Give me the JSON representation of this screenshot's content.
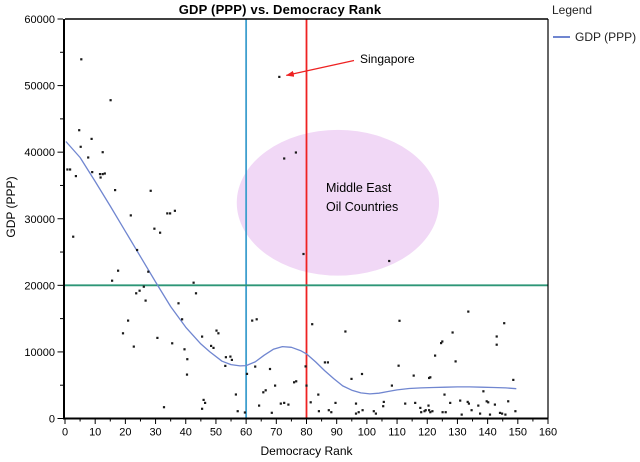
{
  "chart_data": {
    "type": "scatter",
    "title": "GDP (PPP) vs. Democracy Rank",
    "xlabel": "Democracy Rank",
    "ylabel": "GDP (PPP)",
    "xlim": [
      0,
      160
    ],
    "ylim": [
      0,
      60000
    ],
    "x_ticks": [
      0,
      10,
      20,
      30,
      40,
      50,
      60,
      70,
      80,
      90,
      100,
      110,
      120,
      130,
      140,
      150,
      160
    ],
    "y_ticks": [
      0,
      10000,
      20000,
      30000,
      40000,
      50000,
      60000
    ],
    "x_minor_step": 5,
    "y_minor_step": 5000,
    "grid": false,
    "point_color": "#1a1a1a",
    "legend": {
      "title": "Legend",
      "position": "top-right",
      "entries": [
        {
          "label": "GDP (PPP)",
          "color": "#7086d0"
        }
      ]
    },
    "series": [
      {
        "name": "GDP (PPP)",
        "kind": "smooth-trend-line",
        "color": "#7086d0",
        "points": [
          [
            0.3,
            41600
          ],
          [
            5,
            39200
          ],
          [
            10,
            35600
          ],
          [
            15,
            31900
          ],
          [
            20,
            28100
          ],
          [
            25,
            24300
          ],
          [
            30,
            20500
          ],
          [
            35,
            16800
          ],
          [
            40,
            13700
          ],
          [
            45,
            11200
          ],
          [
            48,
            10000
          ],
          [
            52,
            8600
          ],
          [
            55,
            8100
          ],
          [
            58,
            7900
          ],
          [
            60,
            7950
          ],
          [
            63,
            8500
          ],
          [
            66,
            9500
          ],
          [
            69,
            10400
          ],
          [
            72,
            10800
          ],
          [
            75,
            10700
          ],
          [
            78,
            10200
          ],
          [
            80,
            9700
          ],
          [
            83,
            8500
          ],
          [
            86,
            7200
          ],
          [
            89,
            6000
          ],
          [
            92,
            4900
          ],
          [
            95,
            4250
          ],
          [
            98,
            3850
          ],
          [
            101,
            3700
          ],
          [
            104,
            3800
          ],
          [
            107,
            4050
          ],
          [
            110,
            4300
          ],
          [
            114,
            4500
          ],
          [
            118,
            4600
          ],
          [
            122,
            4650
          ],
          [
            126,
            4700
          ],
          [
            130,
            4750
          ],
          [
            134,
            4750
          ],
          [
            138,
            4700
          ],
          [
            142,
            4650
          ],
          [
            146,
            4600
          ],
          [
            149.5,
            4480
          ]
        ]
      }
    ],
    "points": [
      [
        5.4,
        53950
      ],
      [
        15.1,
        47800
      ],
      [
        4.7,
        43300
      ],
      [
        8.8,
        42000
      ],
      [
        5.2,
        40800
      ],
      [
        12.5,
        40000
      ],
      [
        7.7,
        39200
      ],
      [
        0.8,
        37400
      ],
      [
        1.7,
        37400
      ],
      [
        3.6,
        36400
      ],
      [
        9.0,
        37000
      ],
      [
        11.6,
        36700
      ],
      [
        12.5,
        36700
      ],
      [
        13.2,
        36800
      ],
      [
        11.8,
        36200
      ],
      [
        16.6,
        34300
      ],
      [
        28.4,
        34200
      ],
      [
        21.8,
        30500
      ],
      [
        33.9,
        30800
      ],
      [
        34.8,
        30800
      ],
      [
        36.4,
        31200
      ],
      [
        29.6,
        28500
      ],
      [
        31.5,
        27900
      ],
      [
        2.7,
        27300
      ],
      [
        23.9,
        25300
      ],
      [
        17.6,
        22200
      ],
      [
        27.6,
        22050
      ],
      [
        15.6,
        20700
      ],
      [
        26.1,
        19800
      ],
      [
        24.7,
        19200
      ],
      [
        23.6,
        18800
      ],
      [
        43.4,
        18800
      ],
      [
        42.6,
        20400
      ],
      [
        37.6,
        17300
      ],
      [
        26.7,
        17700
      ],
      [
        20.9,
        14700
      ],
      [
        38.8,
        14900
      ],
      [
        19.2,
        12800
      ],
      [
        30.6,
        12100
      ],
      [
        35.5,
        11300
      ],
      [
        22.8,
        10800
      ],
      [
        39.6,
        10400
      ],
      [
        45.4,
        12300
      ],
      [
        50.2,
        13200
      ],
      [
        50.8,
        12800
      ],
      [
        48.4,
        10900
      ],
      [
        49.2,
        10600
      ],
      [
        40.5,
        8900
      ],
      [
        53.3,
        9200
      ],
      [
        54.8,
        9300
      ],
      [
        55.3,
        8800
      ],
      [
        53.1,
        7900
      ],
      [
        40.4,
        6600
      ],
      [
        56.6,
        3600
      ],
      [
        32.8,
        1700
      ],
      [
        45.9,
        2800
      ],
      [
        46.4,
        2350
      ],
      [
        45.4,
        1450
      ],
      [
        57.2,
        1100
      ],
      [
        59.6,
        900
      ],
      [
        62.0,
        14700
      ],
      [
        63.5,
        14900
      ],
      [
        63.0,
        7800
      ],
      [
        60.3,
        6700
      ],
      [
        67.9,
        7440
      ],
      [
        65.7,
        3940
      ],
      [
        66.5,
        4240
      ],
      [
        64.3,
        1940
      ],
      [
        68.5,
        850
      ],
      [
        69.6,
        4940
      ],
      [
        71.5,
        2240
      ],
      [
        72.6,
        2340
      ],
      [
        74.0,
        2090
      ],
      [
        75.9,
        5440
      ],
      [
        76.6,
        5590
      ],
      [
        79.7,
        7830
      ],
      [
        80.0,
        4940
      ],
      [
        81.4,
        2440
      ],
      [
        81.9,
        14170
      ],
      [
        83.9,
        3590
      ],
      [
        84.1,
        1090
      ],
      [
        86.1,
        8430
      ],
      [
        87.1,
        8430
      ],
      [
        87.4,
        1240
      ],
      [
        88.2,
        940
      ],
      [
        89.6,
        2340
      ],
      [
        71.0,
        51300
      ],
      [
        72.6,
        39050
      ],
      [
        76.5,
        39950
      ],
      [
        79.0,
        24700
      ],
      [
        107.4,
        23650
      ],
      [
        92.9,
        13070
      ],
      [
        94.9,
        5940
      ],
      [
        96.4,
        2240
      ],
      [
        96.4,
        740
      ],
      [
        97.3,
        940
      ],
      [
        98.4,
        6690
      ],
      [
        98.6,
        1240
      ],
      [
        102.3,
        1090
      ],
      [
        103.0,
        740
      ],
      [
        105.6,
        2490
      ],
      [
        105.4,
        1840
      ],
      [
        108.3,
        4940
      ],
      [
        110.5,
        7930
      ],
      [
        110.8,
        14670
      ],
      [
        112.7,
        2240
      ],
      [
        115.5,
        6440
      ],
      [
        116.0,
        2340
      ],
      [
        117.7,
        1590
      ],
      [
        118.0,
        940
      ],
      [
        119.1,
        1090
      ],
      [
        119.5,
        1240
      ],
      [
        120.4,
        1940
      ],
      [
        120.6,
        1240
      ],
      [
        120.6,
        6090
      ],
      [
        121.0,
        940
      ],
      [
        121.7,
        1090
      ],
      [
        121.0,
        6190
      ],
      [
        122.6,
        9450
      ],
      [
        124.6,
        11330
      ],
      [
        125.0,
        11570
      ],
      [
        125.1,
        940
      ],
      [
        125.7,
        3590
      ],
      [
        126.1,
        940
      ],
      [
        127.6,
        2340
      ],
      [
        128.4,
        12920
      ],
      [
        129.4,
        8580
      ],
      [
        130.9,
        2690
      ],
      [
        131.4,
        590
      ],
      [
        133.4,
        2490
      ],
      [
        133.8,
        2240
      ],
      [
        133.6,
        16060
      ],
      [
        134.7,
        1240
      ],
      [
        136.9,
        1940
      ],
      [
        137.5,
        740
      ],
      [
        138.6,
        4090
      ],
      [
        139.7,
        2590
      ],
      [
        140.2,
        2440
      ],
      [
        140.8,
        590
      ],
      [
        142.4,
        2090
      ],
      [
        143.0,
        12320
      ],
      [
        143.0,
        11080
      ],
      [
        144.1,
        840
      ],
      [
        144.8,
        740
      ],
      [
        145.5,
        14320
      ],
      [
        145.9,
        590
      ],
      [
        146.8,
        2590
      ],
      [
        148.5,
        5790
      ],
      [
        149.2,
        1090
      ]
    ],
    "reference_lines": [
      {
        "axis": "x",
        "value": 60,
        "color": "#3f9fce"
      },
      {
        "axis": "x",
        "value": 80,
        "color": "#ee2222"
      },
      {
        "axis": "y",
        "value": 20000,
        "color": "#2d9677"
      }
    ],
    "annotations": {
      "singapore": {
        "label": "Singapore",
        "target": {
          "x": 71,
          "y": 51300
        },
        "arrow_color": "#ee2222"
      },
      "region": {
        "label_line1": "Middle East",
        "label_line2": "Oil Countries",
        "shape": "ellipse",
        "center": {
          "x": 90.4,
          "y": 32400
        },
        "rx": 33.5,
        "ry": 10950,
        "fill": "#f1d8f6"
      }
    }
  }
}
